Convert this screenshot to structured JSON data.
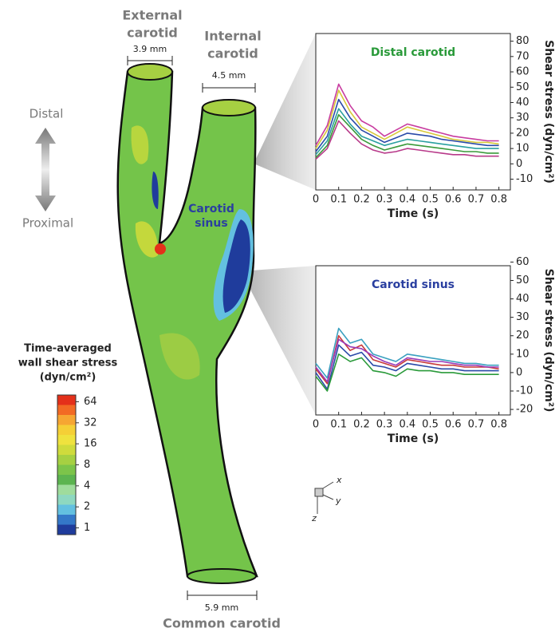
{
  "figure": {
    "external_carotid": [
      "External",
      "carotid"
    ],
    "external_diameter": "3.9 mm",
    "internal_carotid": [
      "Internal",
      "carotid"
    ],
    "internal_diameter": "4.5 mm",
    "distal": "Distal",
    "proximal": "Proximal",
    "carotid_sinus": [
      "Carotid",
      "sinus"
    ],
    "common_diameter": "5.9 mm",
    "common_carotid": "Common carotid",
    "axes": [
      "x",
      "y",
      "z"
    ]
  },
  "colorbar": {
    "title": [
      "Time-averaged",
      "wall shear stress",
      "(dyn/cm²)"
    ],
    "ticks": [
      64,
      32,
      16,
      8,
      4,
      2,
      1
    ],
    "lim": [
      0.8,
      80
    ],
    "scale": "log",
    "colors": [
      "#e4301a",
      "#f26a24",
      "#f6a632",
      "#f5cf36",
      "#efe23e",
      "#cfdb3c",
      "#a6d042",
      "#7cc44a",
      "#5cb450",
      "#9fdc9c",
      "#8ed8c0",
      "#63c0e0",
      "#3478c8",
      "#1f3c9c"
    ]
  },
  "chart_data": [
    {
      "type": "line",
      "title": "Distal carotid",
      "title_color": "#2a9a3a",
      "xlabel": "Time (s)",
      "ylabel": "Shear stress (dyn/cm²)",
      "x": [
        0,
        0.05,
        0.1,
        0.15,
        0.2,
        0.25,
        0.3,
        0.35,
        0.4,
        0.45,
        0.5,
        0.55,
        0.6,
        0.65,
        0.7,
        0.75,
        0.8
      ],
      "xlim": [
        0,
        0.85
      ],
      "xticks": [
        0,
        0.1,
        0.2,
        0.3,
        0.4,
        0.5,
        0.6,
        0.7,
        0.8
      ],
      "ylim": [
        -17,
        85
      ],
      "yticks": [
        -10,
        0,
        10,
        20,
        30,
        40,
        50,
        60,
        70,
        80
      ],
      "series": [
        {
          "color": "#c83ca0",
          "values": [
            12,
            25,
            52,
            38,
            28,
            24,
            18,
            22,
            26,
            24,
            22,
            20,
            18,
            17,
            16,
            15,
            15
          ]
        },
        {
          "color": "#d8c83a",
          "values": [
            10,
            22,
            48,
            34,
            24,
            20,
            16,
            20,
            24,
            22,
            20,
            18,
            16,
            15,
            14,
            14,
            13
          ]
        },
        {
          "color": "#2a4aa8",
          "values": [
            8,
            18,
            42,
            30,
            22,
            18,
            14,
            17,
            20,
            19,
            18,
            16,
            15,
            14,
            13,
            12,
            12
          ]
        },
        {
          "color": "#2aa0a0",
          "values": [
            6,
            15,
            36,
            26,
            18,
            15,
            12,
            14,
            16,
            15,
            14,
            13,
            12,
            11,
            10,
            10,
            10
          ]
        },
        {
          "color": "#3a9a3a",
          "values": [
            4,
            12,
            32,
            24,
            16,
            12,
            9,
            11,
            13,
            12,
            11,
            10,
            9,
            8,
            8,
            7,
            7
          ]
        },
        {
          "color": "#b83a8a",
          "values": [
            3,
            10,
            28,
            20,
            13,
            9,
            7,
            8,
            10,
            9,
            8,
            7,
            6,
            6,
            5,
            5,
            5
          ]
        }
      ]
    },
    {
      "type": "line",
      "title": "Carotid sinus",
      "title_color": "#2a3fa0",
      "xlabel": "Time (s)",
      "ylabel": "Shear stress (dyn/cm²)",
      "x": [
        0,
        0.05,
        0.1,
        0.15,
        0.2,
        0.25,
        0.3,
        0.35,
        0.4,
        0.45,
        0.5,
        0.55,
        0.6,
        0.65,
        0.7,
        0.75,
        0.8
      ],
      "xlim": [
        0,
        0.85
      ],
      "xticks": [
        0,
        0.1,
        0.2,
        0.3,
        0.4,
        0.5,
        0.6,
        0.7,
        0.8
      ],
      "ylim": [
        -23,
        58
      ],
      "yticks": [
        -20,
        -10,
        0,
        10,
        20,
        30,
        40,
        50,
        60
      ],
      "series": [
        {
          "color": "#3aa0c0",
          "values": [
            5,
            -3,
            24,
            16,
            18,
            10,
            8,
            6,
            10,
            9,
            8,
            7,
            6,
            5,
            5,
            4,
            4
          ]
        },
        {
          "color": "#c83a3a",
          "values": [
            2,
            -6,
            20,
            12,
            15,
            7,
            5,
            3,
            7,
            6,
            5,
            4,
            4,
            3,
            3,
            3,
            2
          ]
        },
        {
          "color": "#2a4aa8",
          "values": [
            0,
            -9,
            15,
            9,
            11,
            4,
            3,
            1,
            5,
            4,
            3,
            2,
            2,
            1,
            1,
            1,
            1
          ]
        },
        {
          "color": "#2a9a3a",
          "values": [
            -2,
            -10,
            10,
            6,
            8,
            1,
            0,
            -2,
            2,
            1,
            1,
            0,
            0,
            -1,
            -1,
            -1,
            -1
          ]
        },
        {
          "color": "#9a3ab8",
          "values": [
            3,
            -5,
            18,
            14,
            13,
            9,
            6,
            4,
            8,
            7,
            6,
            6,
            5,
            4,
            4,
            3,
            3
          ]
        }
      ]
    }
  ]
}
